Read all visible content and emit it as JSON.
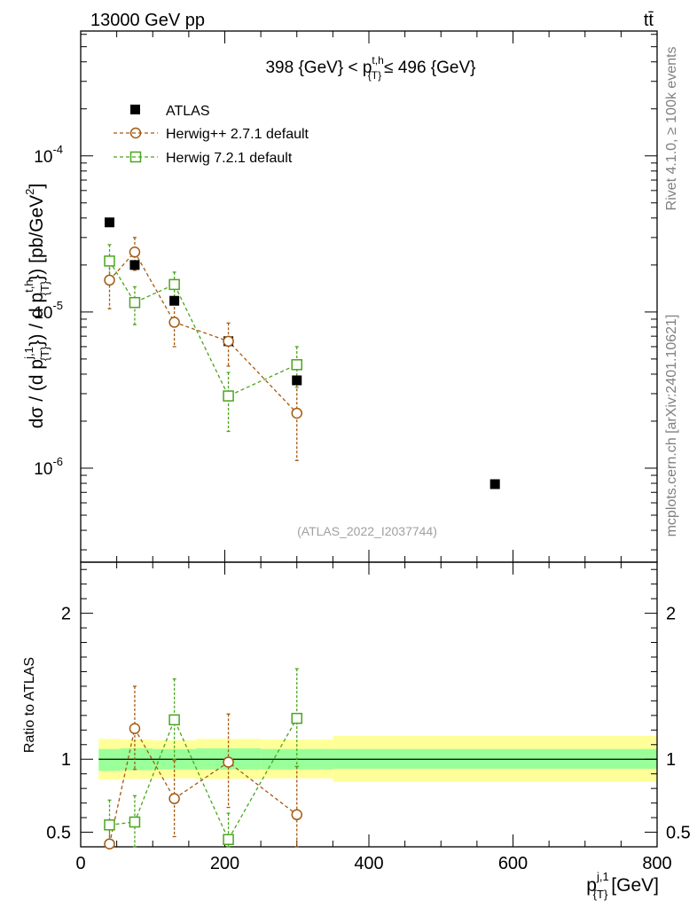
{
  "header": {
    "energy_label": "13000 GeV pp",
    "process_label": "tt̄",
    "ylabel": "dσ / (d p^{j,1}_{T}) / d p^{t,h}_{T}) [pb/GeV²]",
    "ratio_ylabel": "Ratio to ATLAS",
    "side_label_rivet": "Rivet 4.1.0, ≥ 100k events",
    "side_label_mcplots": "mcplots.cern.ch [arXiv:2401.10621]",
    "analysis_id": "(ATLAS_2022_I2037744)",
    "panel_title": "398 {GeV} < p^{t,h}_{T} ≤ 496 {GeV}",
    "xlabel": "p^{j,1}_{T} [GeV]"
  },
  "axis_text": {
    "title_prefix": "398 {GeV} < p",
    "title_sup": "t,h",
    "title_sub": "{T}",
    "title_suffix": "≤ 496 {GeV}",
    "x_main": "p",
    "x_sup": "j,1",
    "x_sub": "{T}",
    "x_unit": "[GeV]",
    "y_a": "dσ / (d p",
    "y_a_sup": "j,1",
    "y_a_sub": "{T}",
    "y_b": "}) / d p",
    "y_b_sup": "t,h",
    "y_b_sub": "{T}",
    "y_c": "}) [pb/GeV",
    "y_c_sup": "2",
    "y_c_end": "]"
  },
  "legend": {
    "atlas": "ATLAS",
    "herwigpp": "Herwig++ 2.7.1 default",
    "herwig7": "Herwig 7.2.1 default"
  },
  "colors": {
    "atlas": "#000000",
    "herwigpp": "#a35a12",
    "herwig7": "#4aa51e",
    "band_inner": "#99ff99",
    "band_outer": "#ffff99"
  },
  "chart_data": {
    "type": "scatter",
    "main": {
      "yscale": "log",
      "ylim": [
        2.5e-07,
        0.00063
      ],
      "y_ticks": [
        "10^{-6}",
        "10^{-5}",
        "10^{-4}"
      ],
      "xlim": [
        0,
        800
      ]
    },
    "ratio": {
      "ylim": [
        0.4,
        2.35
      ],
      "y_ticks": [
        0.5,
        1,
        2
      ],
      "xlim": [
        0,
        800
      ]
    },
    "x_ticks": [
      0,
      200,
      400,
      600,
      800
    ],
    "series": [
      {
        "name": "ATLAS",
        "x": [
          40,
          75,
          130,
          205,
          300,
          575
        ],
        "y": [
          3.75e-05,
          2e-05,
          1.18e-05,
          6.5e-06,
          3.65e-06,
          7.9e-07
        ]
      },
      {
        "name": "Herwig++ 2.7.1 default",
        "x": [
          40,
          75,
          130,
          205,
          300
        ],
        "y": [
          1.6e-05,
          2.42e-05,
          8.6e-06,
          6.5e-06,
          2.25e-06
        ],
        "err_lo": [
          1.05e-05,
          1.85e-05,
          6e-06,
          4.5e-06,
          1.12e-06
        ],
        "err_hi": [
          2.2e-05,
          3e-05,
          1.15e-05,
          8.5e-06,
          3.45e-06
        ],
        "ratio": [
          0.42,
          1.21,
          0.73,
          0.98,
          0.62
        ],
        "ratio_lo": [
          0.28,
          0.93,
          0.47,
          0.67,
          0.31
        ],
        "ratio_hi": [
          0.58,
          1.5,
          0.99,
          1.31,
          0.95
        ]
      },
      {
        "name": "Herwig 7.2.1 default",
        "x": [
          40,
          75,
          130,
          205,
          300
        ],
        "y": [
          2.12e-05,
          1.15e-05,
          1.5e-05,
          2.9e-06,
          4.6e-06
        ],
        "err_lo": [
          1.5e-05,
          8.3e-06,
          1.2e-05,
          1.72e-06,
          3.3e-06
        ],
        "err_hi": [
          2.7e-05,
          1.45e-05,
          1.8e-05,
          4.1e-06,
          6e-06
        ],
        "ratio": [
          0.55,
          0.57,
          1.27,
          0.45,
          1.28
        ],
        "ratio_lo": [
          0.4,
          0.4,
          1.0,
          0.28,
          0.95
        ],
        "ratio_hi": [
          0.72,
          0.75,
          1.55,
          0.63,
          1.62
        ]
      }
    ],
    "uncertainty_band": [
      {
        "x0": 25,
        "x1": 55,
        "inner": [
          0.92,
          1.07
        ],
        "outer": [
          0.86,
          1.14
        ]
      },
      {
        "x0": 55,
        "x1": 100,
        "inner": [
          0.925,
          1.075
        ],
        "outer": [
          0.865,
          1.135
        ]
      },
      {
        "x0": 100,
        "x1": 160,
        "inner": [
          0.93,
          1.07
        ],
        "outer": [
          0.87,
          1.13
        ]
      },
      {
        "x0": 160,
        "x1": 250,
        "inner": [
          0.93,
          1.075
        ],
        "outer": [
          0.865,
          1.14
        ]
      },
      {
        "x0": 250,
        "x1": 350,
        "inner": [
          0.93,
          1.07
        ],
        "outer": [
          0.87,
          1.135
        ]
      },
      {
        "x0": 350,
        "x1": 800,
        "inner": [
          0.935,
          1.07
        ],
        "outer": [
          0.845,
          1.16
        ]
      }
    ]
  }
}
